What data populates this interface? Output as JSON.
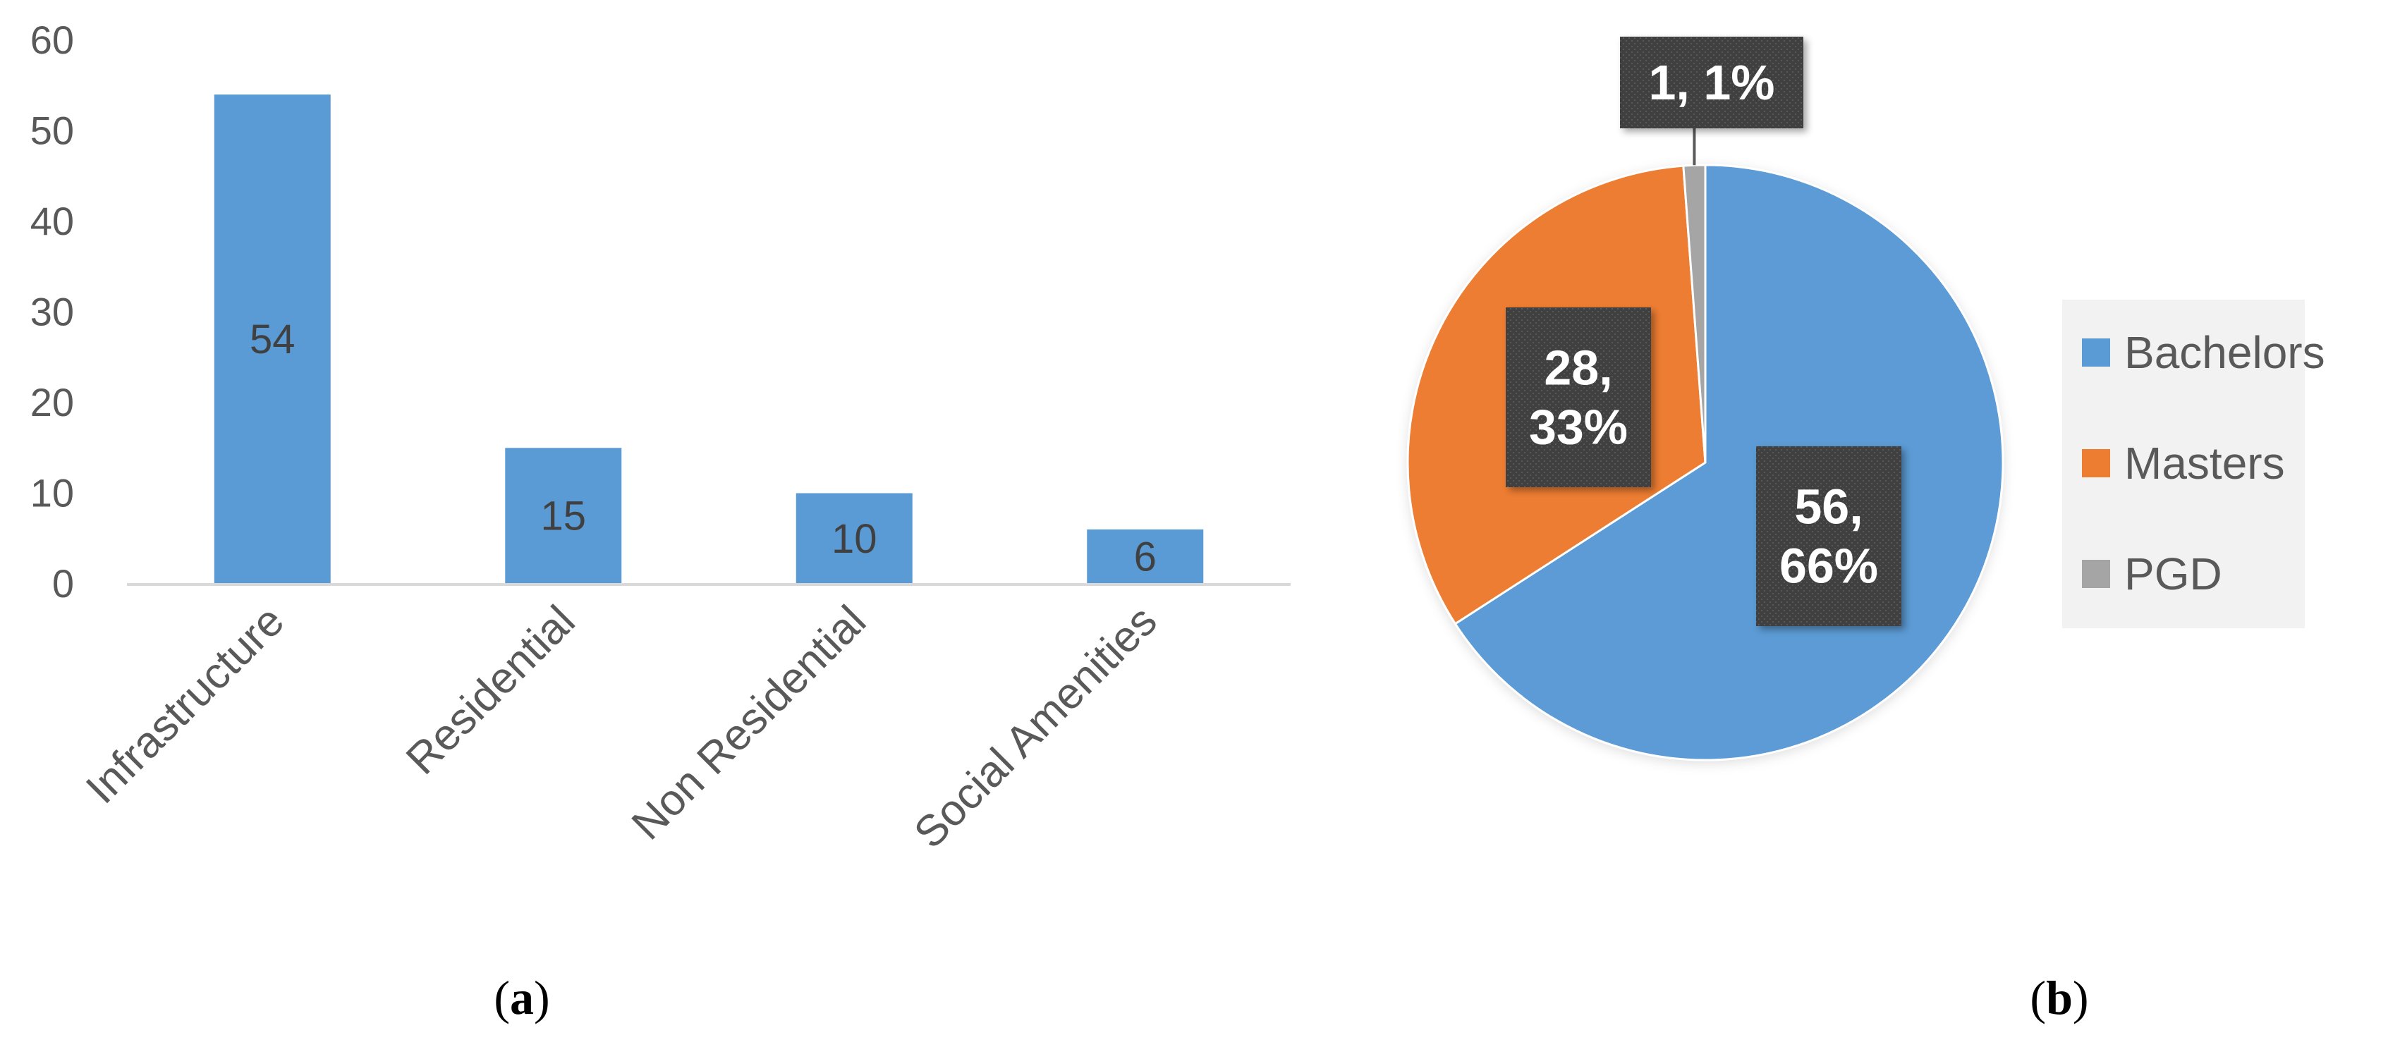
{
  "panels": [
    {
      "open": "(",
      "letter": "a",
      "close": ")"
    },
    {
      "open": "(",
      "letter": "b",
      "close": ")"
    }
  ],
  "chart_data": [
    {
      "type": "bar",
      "categories": [
        "Infrastructure",
        "Residential",
        "Non Residential",
        "Social Amenities"
      ],
      "values": [
        54,
        15,
        10,
        6
      ],
      "data_labels": [
        "54",
        "15",
        "10",
        "6"
      ],
      "ylim": [
        0,
        60
      ],
      "yticks": [
        0,
        10,
        20,
        30,
        40,
        50,
        60
      ],
      "grid": false,
      "legend": "none",
      "colors": {
        "bar": "#5B9BD5",
        "axis": "#D9D9D9"
      }
    },
    {
      "type": "pie",
      "labels": [
        "Bachelors",
        "Masters",
        "PGD"
      ],
      "values": [
        56,
        28,
        1
      ],
      "percents": [
        66,
        33,
        1
      ],
      "data_labels": [
        [
          "56,",
          "66%"
        ],
        [
          "28,",
          "33%"
        ],
        [
          "1, 1%"
        ]
      ],
      "legend": "right",
      "colors": [
        "#5B9BD5",
        "#ED7D31",
        "#A5A5A5"
      ],
      "label_box_color": "#404040"
    }
  ]
}
